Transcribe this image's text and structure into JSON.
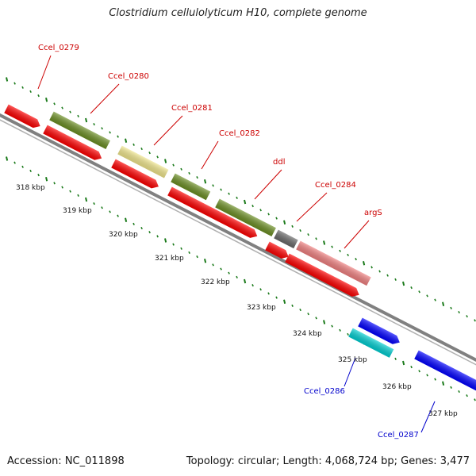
{
  "title": "Clostridium cellulolyticum H10, complete genome",
  "accession_text": "Accession: NC_011898",
  "summary_text": "Topology: circular; Length: 4,068,724 bp; Genes: 3,477",
  "colors": {
    "backbone": "#808080",
    "tick": "#1a7a1a",
    "red_label": "#cc0000",
    "blue_label": "#0000cc"
  },
  "kbp_labels": [
    "318 kbp",
    "319 kbp",
    "320 kbp",
    "321 kbp",
    "322 kbp",
    "323 kbp",
    "324 kbp",
    "325 kbp",
    "326 kbp",
    "327 kbp"
  ],
  "gene_labels": [
    {
      "text": "Ccel_0279",
      "color": "red"
    },
    {
      "text": "Ccel_0280",
      "color": "red"
    },
    {
      "text": "Ccel_0281",
      "color": "red"
    },
    {
      "text": "Ccel_0282",
      "color": "red"
    },
    {
      "text": "ddl",
      "color": "red"
    },
    {
      "text": "Ccel_0284",
      "color": "red"
    },
    {
      "text": "argS",
      "color": "red"
    },
    {
      "text": "Ccel_0286",
      "color": "blue"
    },
    {
      "text": "Ccel_0287",
      "color": "blue"
    }
  ],
  "features": [
    {
      "name": "feature-red-a",
      "color": "#ff0000"
    },
    {
      "name": "feature-red-b",
      "color": "#ff0000"
    },
    {
      "name": "feature-olive-a",
      "color": "#6b8e23"
    },
    {
      "name": "feature-red-c",
      "color": "#ff0000"
    },
    {
      "name": "feature-khaki",
      "color": "#f0e68c"
    },
    {
      "name": "feature-olive-b",
      "color": "#6b8e23"
    },
    {
      "name": "feature-red-d",
      "color": "#ff0000"
    },
    {
      "name": "feature-olive-c",
      "color": "#6b8e23"
    },
    {
      "name": "feature-red-e",
      "color": "#ff0000"
    },
    {
      "name": "feature-gray",
      "color": "#696969"
    },
    {
      "name": "feature-salmon",
      "color": "#f08080"
    },
    {
      "name": "feature-red-f",
      "color": "#ff0000"
    },
    {
      "name": "feature-blue-a",
      "color": "#0000ff"
    },
    {
      "name": "feature-cyan",
      "color": "#00ced1"
    },
    {
      "name": "feature-blue-b",
      "color": "#0000ff"
    }
  ]
}
